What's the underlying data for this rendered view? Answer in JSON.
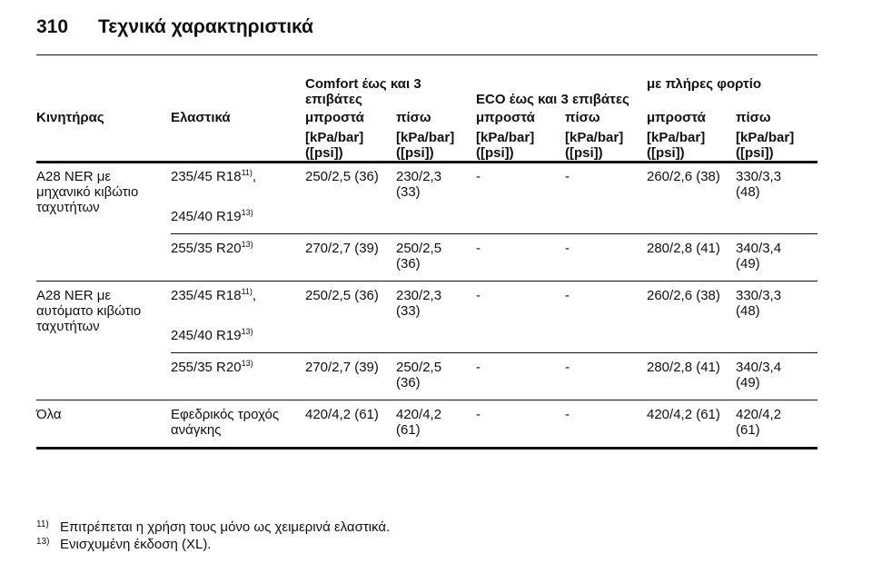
{
  "header": {
    "page_number": "310",
    "title": "Τεχνικά χαρακτηριστικά"
  },
  "table": {
    "group_headers": [
      "Comfort έως και 3 επιβάτες",
      "ECO έως και 3 επιβάτες",
      "με πλήρες φορτίο"
    ],
    "columns": [
      "Κινητήρας",
      "Ελαστικά",
      "μπροστά",
      "πίσω",
      "μπροστά",
      "πίσω",
      "μπροστά",
      "πίσω"
    ],
    "units": [
      "[kPa/bar] ([psi])",
      "[kPa/bar] ([psi])",
      "[kPa/bar] ([psi])",
      "[kPa/bar] ([psi])",
      "[kPa/bar] ([psi])",
      "[kPa/bar] ([psi])"
    ],
    "groups": [
      {
        "engine": "A28 NER με μηχανικό κιβώτιο ταχυτήτων",
        "rows": [
          {
            "tyres": [
              {
                "text": "235/45 R18",
                "note": "11)",
                "suffix": ","
              },
              {
                "text": "245/40 R19",
                "note": "13)"
              }
            ],
            "values": [
              "250/2,5 (36)",
              "230/2,3 (33)",
              "-",
              "-",
              "260/2,6 (38)",
              "330/3,3 (48)"
            ]
          },
          {
            "tyres": [
              {
                "text": "255/35 R20",
                "note": "13)"
              }
            ],
            "values": [
              "270/2,7 (39)",
              "250/2,5 (36)",
              "-",
              "-",
              "280/2,8 (41)",
              "340/3,4 (49)"
            ]
          }
        ]
      },
      {
        "engine": "A28 NER με αυτόματο κιβώτιο ταχυτήτων",
        "rows": [
          {
            "tyres": [
              {
                "text": "235/45 R18",
                "note": "11)",
                "suffix": ","
              },
              {
                "text": "245/40 R19",
                "note": "13)"
              }
            ],
            "values": [
              "250/2,5 (36)",
              "230/2,3 (33)",
              "-",
              "-",
              "260/2,6 (38)",
              "330/3,3 (48)"
            ]
          },
          {
            "tyres": [
              {
                "text": "255/35 R20",
                "note": "13)"
              }
            ],
            "values": [
              "270/2,7 (39)",
              "250/2,5 (36)",
              "-",
              "-",
              "280/2,8 (41)",
              "340/3,4 (49)"
            ]
          }
        ]
      },
      {
        "engine": "Όλα",
        "rows": [
          {
            "tyres": [
              {
                "text": "Εφεδρικός τροχός ανάγκης"
              }
            ],
            "values": [
              "420/4,2 (61)",
              "420/4,2 (61)",
              "-",
              "-",
              "420/4,2 (61)",
              "420/4,2 (61)"
            ]
          }
        ]
      }
    ]
  },
  "footnotes": [
    {
      "mark": "11)",
      "text": "Επιτρέπεται η χρήση τους μόνο ως χειμερινά ελαστικά."
    },
    {
      "mark": "13)",
      "text": "Ενισχυμένη έκδοση (XL)."
    }
  ]
}
